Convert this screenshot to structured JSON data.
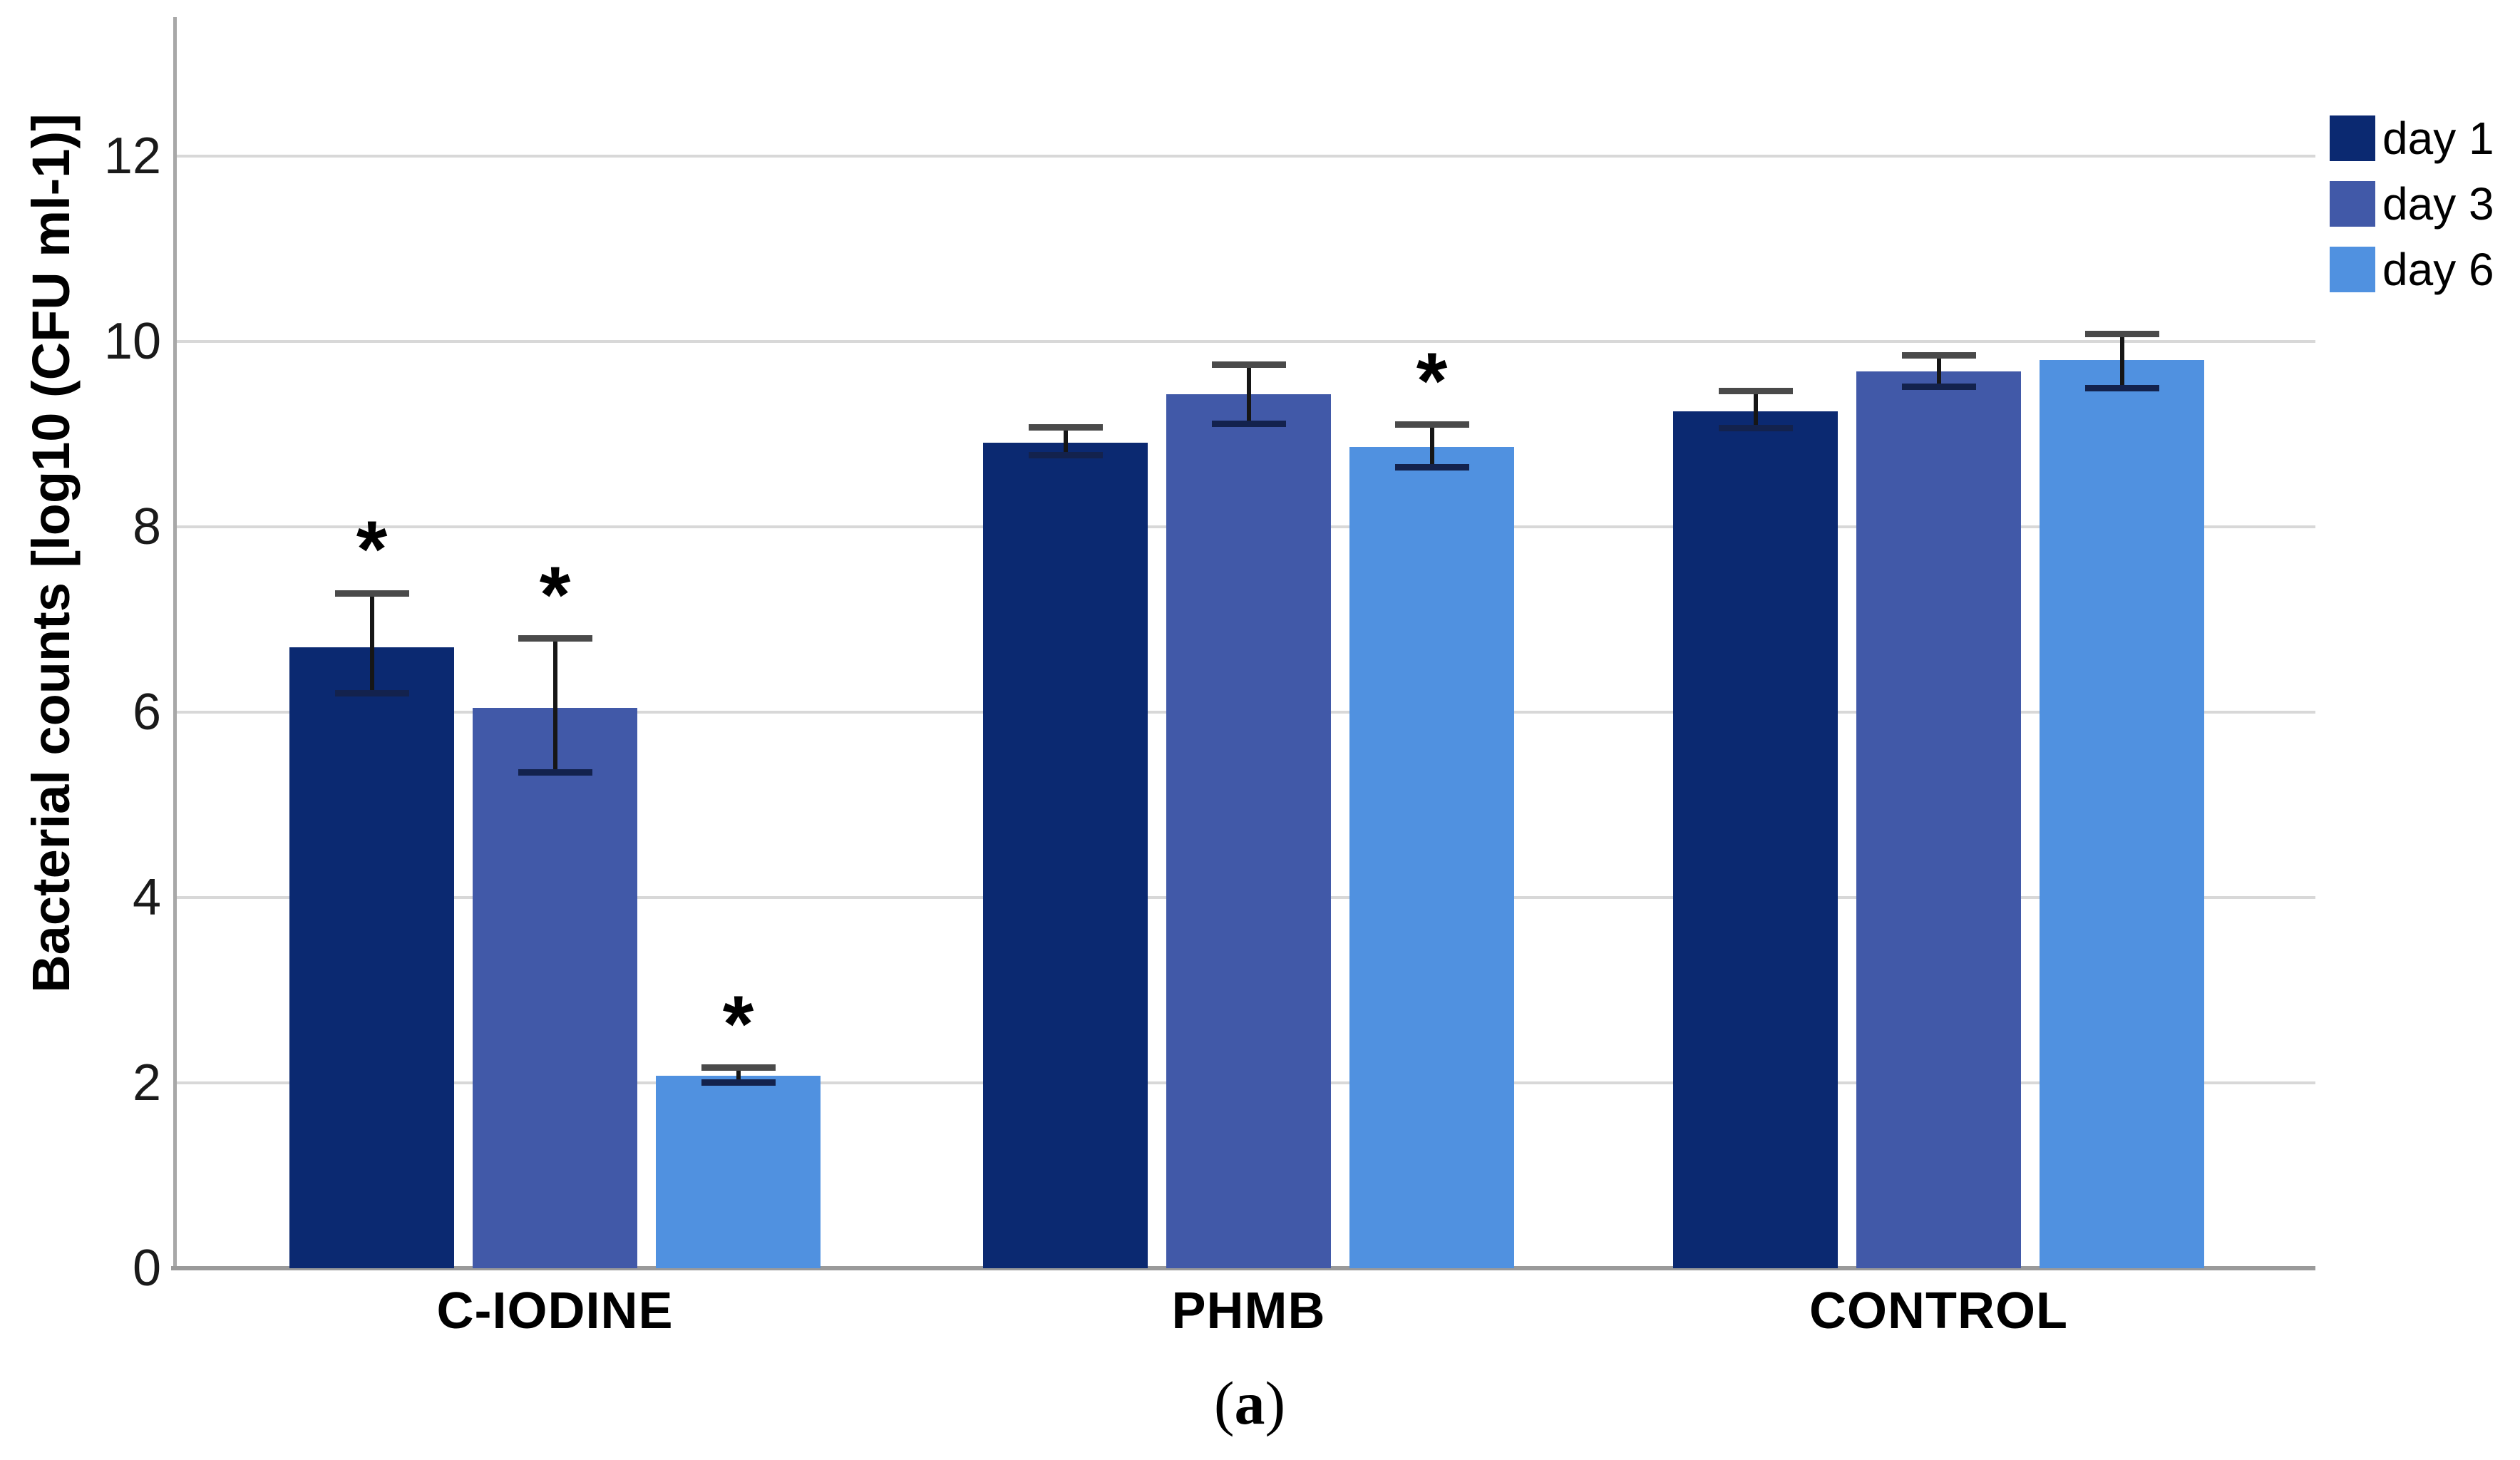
{
  "chart_data": {
    "type": "bar",
    "title": "",
    "ylabel": "Bacterial counts [log10 (CFU ml-1)]",
    "xlabel": "",
    "categories": [
      "C-IODINE",
      "PHMB",
      "CONTROL"
    ],
    "series": [
      {
        "name": "day 1",
        "color": "#0B2971",
        "values": [
          6.7,
          8.91,
          9.25
        ],
        "err_high": [
          7.28,
          9.07,
          9.46
        ],
        "err_low": [
          6.2,
          8.77,
          9.06
        ],
        "significant": [
          true,
          false,
          false
        ]
      },
      {
        "name": "day 3",
        "color": "#4159A8",
        "values": [
          6.05,
          9.43,
          9.68
        ],
        "err_high": [
          6.79,
          9.75,
          9.85
        ],
        "err_low": [
          5.35,
          9.11,
          9.51
        ],
        "significant": [
          true,
          false,
          false
        ]
      },
      {
        "name": "day 6",
        "color": "#5091E0",
        "values": [
          2.08,
          8.86,
          9.8
        ],
        "err_high": [
          2.16,
          9.1,
          10.08
        ],
        "err_low": [
          2.0,
          8.64,
          9.49
        ],
        "significant": [
          true,
          true,
          false
        ]
      }
    ],
    "y_ticks": [
      0,
      2,
      4,
      6,
      8,
      10,
      12
    ],
    "ylim": [
      0,
      13.5
    ],
    "grid": true,
    "legend_position": "top-right",
    "significance_marker": "*",
    "colors": {
      "gridline": "#d8d8d8",
      "axis": "#9a9a9a",
      "error_bar": "#161616"
    }
  },
  "caption": {
    "open": "(",
    "letter": "a",
    "close": ")"
  }
}
